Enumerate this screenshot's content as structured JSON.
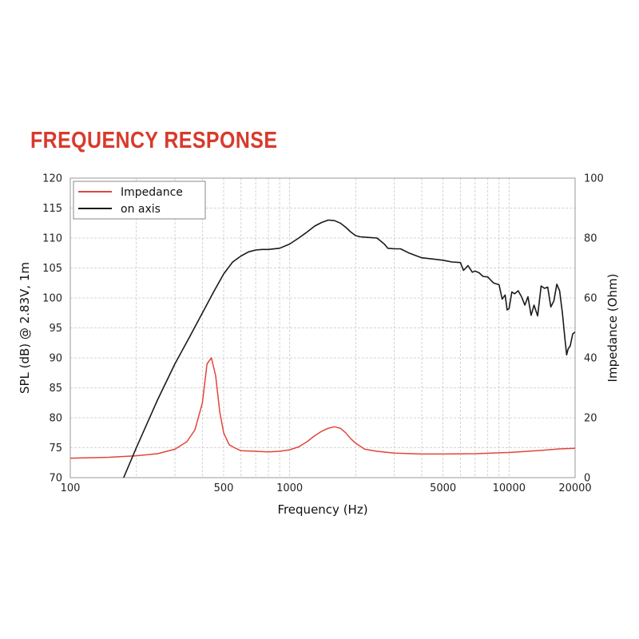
{
  "heading": "FREQUENCY RESPONSE",
  "chart_data": {
    "type": "line",
    "xlabel": "Frequency (Hz)",
    "ylabel": "SPL (dB) @ 2.83V, 1m",
    "y2label": "Impedance (Ohm)",
    "xscale": "log",
    "xlim": [
      100,
      20000
    ],
    "ylim": [
      70,
      120
    ],
    "y2lim": [
      0,
      100
    ],
    "x_ticks": [
      "100",
      "500",
      "1000",
      "5000",
      "10000",
      "20000"
    ],
    "y_ticks": [
      "70",
      "75",
      "80",
      "85",
      "90",
      "95",
      "100",
      "105",
      "110",
      "115",
      "120"
    ],
    "y2_ticks": [
      "0",
      "20",
      "40",
      "60",
      "80",
      "100"
    ],
    "grid": true,
    "legend_position": "top-left",
    "colors": {
      "Impedance": "#e0463a",
      "on axis": "#1a1a1a"
    },
    "series": [
      {
        "name": "Impedance",
        "axis": "right",
        "x": [
          100,
          150,
          200,
          250,
          300,
          340,
          370,
          400,
          420,
          440,
          460,
          480,
          500,
          530,
          560,
          600,
          700,
          800,
          900,
          1000,
          1100,
          1200,
          1300,
          1400,
          1500,
          1600,
          1700,
          1800,
          1900,
          2000,
          2200,
          2500,
          3000,
          4000,
          5000,
          7000,
          10000,
          14000,
          17000,
          20000
        ],
        "y": [
          6.5,
          6.8,
          7.3,
          8,
          9.5,
          12,
          16,
          25,
          38,
          40,
          34,
          22,
          15,
          11,
          10,
          9,
          8.8,
          8.6,
          8.8,
          9.3,
          10.3,
          12,
          14,
          15.5,
          16.5,
          17,
          16.5,
          15,
          13,
          11.5,
          9.5,
          8.8,
          8.2,
          7.9,
          7.9,
          8,
          8.4,
          9.1,
          9.6,
          9.8
        ]
      },
      {
        "name": "on axis",
        "axis": "left",
        "x": [
          175,
          200,
          250,
          300,
          350,
          400,
          450,
          500,
          550,
          600,
          650,
          700,
          750,
          800,
          900,
          1000,
          1100,
          1200,
          1300,
          1400,
          1500,
          1600,
          1700,
          1800,
          1900,
          2000,
          2100,
          2300,
          2500,
          2700,
          2800,
          3000,
          3200,
          3500,
          3800,
          4000,
          4500,
          5000,
          5500,
          6000,
          6200,
          6500,
          6800,
          7000,
          7300,
          7600,
          8000,
          8500,
          9000,
          9300,
          9600,
          9800,
          10000,
          10300,
          10600,
          11000,
          11400,
          11800,
          12200,
          12600,
          13000,
          13500,
          14000,
          14500,
          15000,
          15500,
          16000,
          16500,
          17000,
          17500,
          18000,
          18300,
          18600,
          19000,
          19500,
          20000
        ],
        "y": [
          70,
          75,
          83,
          89,
          93.5,
          97.5,
          101,
          104,
          106,
          107,
          107.7,
          108,
          108.1,
          108.1,
          108.3,
          109,
          110,
          111,
          112,
          112.6,
          113,
          112.9,
          112.5,
          111.8,
          111,
          110.4,
          110.2,
          110.1,
          110,
          109,
          108.3,
          108.2,
          108.2,
          107.5,
          107,
          106.7,
          106.5,
          106.3,
          106,
          105.9,
          104.6,
          105.4,
          104.3,
          104.5,
          104.2,
          103.6,
          103.5,
          102.5,
          102.2,
          99.8,
          100.5,
          98,
          98.2,
          101,
          100.7,
          101.2,
          100.2,
          98.8,
          100.2,
          97.1,
          98.8,
          97,
          102,
          101.6,
          101.8,
          98.5,
          99.5,
          102.3,
          101.2,
          97.5,
          93,
          90.5,
          91.5,
          92,
          94,
          94.3
        ]
      }
    ]
  }
}
